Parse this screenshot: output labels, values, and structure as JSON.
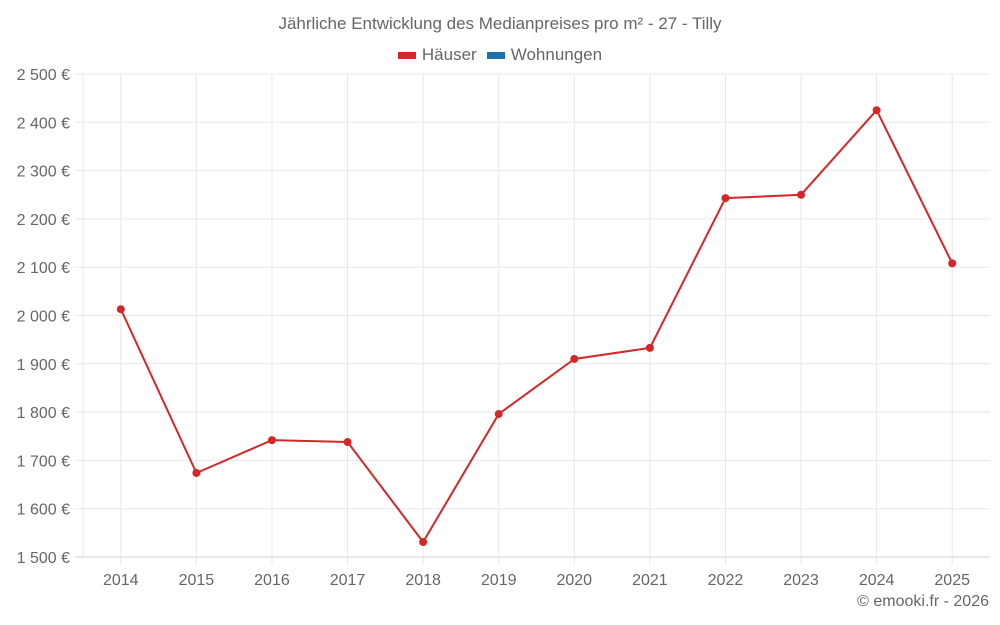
{
  "title": "Jährliche Entwicklung des Medianpreises pro m² - 27 - Tilly",
  "legend": [
    {
      "label": "Häuser",
      "color": "#d62728"
    },
    {
      "label": "Wohnungen",
      "color": "#1f6fa8"
    }
  ],
  "credit": "© emooki.fr - 2026",
  "colors": {
    "series": "#d62728",
    "grid": "#e8e8e8",
    "axis": "#d0d0d0",
    "text": "#666666"
  },
  "chart_data": {
    "type": "line",
    "title": "Jährliche Entwicklung des Medianpreises pro m² - 27 - Tilly",
    "xlabel": "",
    "ylabel": "",
    "categories": [
      "2014",
      "2015",
      "2016",
      "2017",
      "2018",
      "2019",
      "2020",
      "2021",
      "2022",
      "2023",
      "2024",
      "2025"
    ],
    "series": [
      {
        "name": "Häuser",
        "color": "#d62728",
        "values": [
          2013,
          1674,
          1742,
          1738,
          1531,
          1796,
          1910,
          1933,
          2243,
          2250,
          2425,
          2108
        ]
      },
      {
        "name": "Wohnungen",
        "color": "#1f6fa8",
        "values": []
      }
    ],
    "ylim": [
      1500,
      2500
    ],
    "yticks": [
      1500,
      1600,
      1700,
      1800,
      1900,
      2000,
      2100,
      2200,
      2300,
      2400,
      2500
    ],
    "ytick_labels": [
      "1 500 €",
      "1 600 €",
      "1 700 €",
      "1 800 €",
      "1 900 €",
      "2 000 €",
      "2 100 €",
      "2 200 €",
      "2 300 €",
      "2 400 €",
      "2 500 €"
    ],
    "grid": true,
    "legend_position": "top"
  }
}
